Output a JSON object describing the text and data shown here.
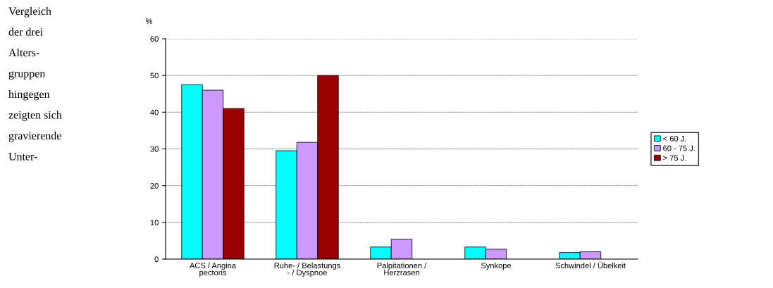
{
  "chart_data": {
    "type": "bar",
    "ylabel": "%",
    "categories": [
      "ACS / Angina\npectoris",
      "Ruhe- / Belastungs\n- / Dyspnoe",
      "Palpitationen /\nHerzrasen",
      "Synkope",
      "Schwindel / Übelkeit"
    ],
    "series": [
      {
        "name": "< 60 J.",
        "color": "#00ffff",
        "values": [
          47.5,
          29.5,
          3.3,
          3.3,
          1.8
        ]
      },
      {
        "name": "60 - 75 J.",
        "color": "#cc99ff",
        "values": [
          46,
          31.8,
          5.4,
          2.7,
          2.0
        ]
      },
      {
        "name": "> 75 J.",
        "color": "#990000",
        "values": [
          41,
          50,
          null,
          null,
          null
        ]
      }
    ],
    "ylim": [
      0,
      60
    ],
    "yticks": [
      0,
      10,
      20,
      30,
      40,
      50,
      60
    ],
    "grid": "y",
    "legend": "right",
    "annotations": [
      "Vergleich\nder drei\nAlters-\ngruppen\nhingegen\nzeigten sich\ngravierende\nUnter-"
    ]
  }
}
